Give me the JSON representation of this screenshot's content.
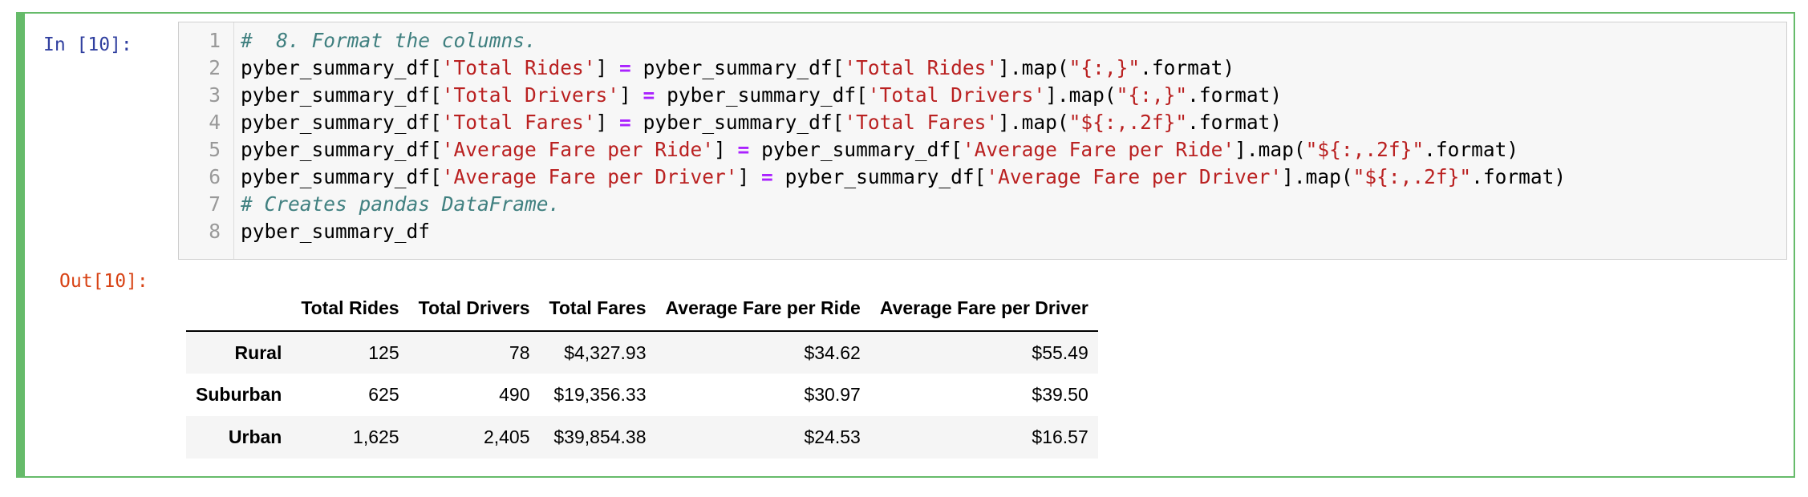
{
  "cell": {
    "input_prompt": "In [10]:",
    "output_prompt": "Out[10]:",
    "code_lines": [
      {
        "number": "1",
        "tokens": [
          {
            "t": "#  8. Format the columns.",
            "k": "comment"
          }
        ]
      },
      {
        "number": "2",
        "tokens": [
          {
            "t": "pyber_summary_df[",
            "k": "plain"
          },
          {
            "t": "'Total Rides'",
            "k": "string"
          },
          {
            "t": "] ",
            "k": "plain"
          },
          {
            "t": "=",
            "k": "op"
          },
          {
            "t": " pyber_summary_df[",
            "k": "plain"
          },
          {
            "t": "'Total Rides'",
            "k": "string"
          },
          {
            "t": "].map(",
            "k": "plain"
          },
          {
            "t": "\"{:,}\"",
            "k": "string"
          },
          {
            "t": ".format)",
            "k": "plain"
          }
        ]
      },
      {
        "number": "3",
        "tokens": [
          {
            "t": "pyber_summary_df[",
            "k": "plain"
          },
          {
            "t": "'Total Drivers'",
            "k": "string"
          },
          {
            "t": "] ",
            "k": "plain"
          },
          {
            "t": "=",
            "k": "op"
          },
          {
            "t": " pyber_summary_df[",
            "k": "plain"
          },
          {
            "t": "'Total Drivers'",
            "k": "string"
          },
          {
            "t": "].map(",
            "k": "plain"
          },
          {
            "t": "\"{:,}\"",
            "k": "string"
          },
          {
            "t": ".format)",
            "k": "plain"
          }
        ]
      },
      {
        "number": "4",
        "tokens": [
          {
            "t": "pyber_summary_df[",
            "k": "plain"
          },
          {
            "t": "'Total Fares'",
            "k": "string"
          },
          {
            "t": "] ",
            "k": "plain"
          },
          {
            "t": "=",
            "k": "op"
          },
          {
            "t": " pyber_summary_df[",
            "k": "plain"
          },
          {
            "t": "'Total Fares'",
            "k": "string"
          },
          {
            "t": "].map(",
            "k": "plain"
          },
          {
            "t": "\"${:,.2f}\"",
            "k": "string"
          },
          {
            "t": ".format)",
            "k": "plain"
          }
        ]
      },
      {
        "number": "5",
        "tokens": [
          {
            "t": "pyber_summary_df[",
            "k": "plain"
          },
          {
            "t": "'Average Fare per Ride'",
            "k": "string"
          },
          {
            "t": "] ",
            "k": "plain"
          },
          {
            "t": "=",
            "k": "op"
          },
          {
            "t": " pyber_summary_df[",
            "k": "plain"
          },
          {
            "t": "'Average Fare per Ride'",
            "k": "string"
          },
          {
            "t": "].map(",
            "k": "plain"
          },
          {
            "t": "\"${:,.2f}\"",
            "k": "string"
          },
          {
            "t": ".format)",
            "k": "plain"
          }
        ]
      },
      {
        "number": "6",
        "tokens": [
          {
            "t": "pyber_summary_df[",
            "k": "plain"
          },
          {
            "t": "'Average Fare per Driver'",
            "k": "string"
          },
          {
            "t": "] ",
            "k": "plain"
          },
          {
            "t": "=",
            "k": "op"
          },
          {
            "t": " pyber_summary_df[",
            "k": "plain"
          },
          {
            "t": "'Average Fare per Driver'",
            "k": "string"
          },
          {
            "t": "].map(",
            "k": "plain"
          },
          {
            "t": "\"${:,.2f}\"",
            "k": "string"
          },
          {
            "t": ".format)",
            "k": "plain"
          }
        ]
      },
      {
        "number": "7",
        "tokens": [
          {
            "t": "# Creates pandas DataFrame.",
            "k": "comment"
          }
        ]
      },
      {
        "number": "8",
        "tokens": [
          {
            "t": "pyber_summary_df",
            "k": "plain"
          }
        ]
      }
    ]
  },
  "dataframe": {
    "columns": [
      "",
      "Total Rides",
      "Total Drivers",
      "Total Fares",
      "Average Fare per Ride",
      "Average Fare per Driver"
    ],
    "rows": [
      {
        "index": "Rural",
        "cells": [
          "125",
          "78",
          "$4,327.93",
          "$34.62",
          "$55.49"
        ]
      },
      {
        "index": "Suburban",
        "cells": [
          "625",
          "490",
          "$19,356.33",
          "$30.97",
          "$39.50"
        ]
      },
      {
        "index": "Urban",
        "cells": [
          "1,625",
          "2,405",
          "$39,854.38",
          "$24.53",
          "$16.57"
        ]
      }
    ]
  },
  "colors": {
    "cell_border": "#66bb6a",
    "input_prompt": "#303f9f",
    "output_prompt": "#d84315",
    "comment": "#408080",
    "string": "#ba2121",
    "operator": "#aa22ff"
  }
}
